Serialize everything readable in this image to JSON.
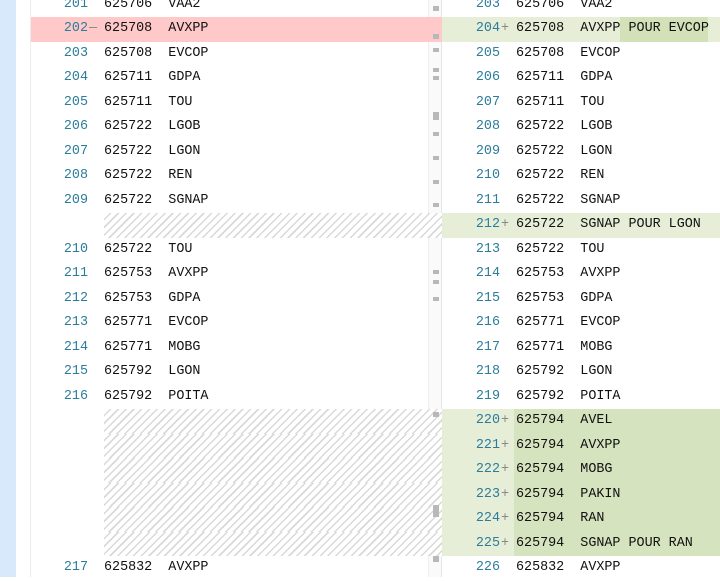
{
  "colors": {
    "deleted": "#ffc9c9",
    "added": "#e6eed8",
    "added_strong": "#d6e3bf",
    "line_number": "#2b7d9b"
  },
  "left": {
    "rows": [
      {
        "num": "201",
        "text": "625706  VAA2"
      },
      {
        "num": "202",
        "text": "625708  AVXPP",
        "type": "deleted",
        "marker": "—"
      },
      {
        "num": "203",
        "text": "625708  EVCOP"
      },
      {
        "num": "204",
        "text": "625711  GDPA"
      },
      {
        "num": "205",
        "text": "625711  TOU"
      },
      {
        "num": "206",
        "text": "625722  LGOB"
      },
      {
        "num": "207",
        "text": "625722  LGON"
      },
      {
        "num": "208",
        "text": "625722  REN"
      },
      {
        "num": "209",
        "text": "625722  SGNAP"
      },
      {
        "type": "gap"
      },
      {
        "num": "210",
        "text": "625722  TOU"
      },
      {
        "num": "211",
        "text": "625753  AVXPP"
      },
      {
        "num": "212",
        "text": "625753  GDPA"
      },
      {
        "num": "213",
        "text": "625771  EVCOP"
      },
      {
        "num": "214",
        "text": "625771  MOBG"
      },
      {
        "num": "215",
        "text": "625792  LGON"
      },
      {
        "num": "216",
        "text": "625792  POITA"
      },
      {
        "type": "gap"
      },
      {
        "type": "gap"
      },
      {
        "type": "gap"
      },
      {
        "type": "gap"
      },
      {
        "type": "gap"
      },
      {
        "type": "gap"
      },
      {
        "num": "217",
        "text": "625832  AVXPP"
      }
    ]
  },
  "right": {
    "rows": [
      {
        "num": "203",
        "text": "625706  VAA2"
      },
      {
        "num": "204",
        "text": "625708  AVXPP POUR EVCOP",
        "type": "added",
        "marker": "+"
      },
      {
        "num": "205",
        "text": "625708  EVCOP"
      },
      {
        "num": "206",
        "text": "625711  GDPA"
      },
      {
        "num": "207",
        "text": "625711  TOU"
      },
      {
        "num": "208",
        "text": "625722  LGOB"
      },
      {
        "num": "209",
        "text": "625722  LGON"
      },
      {
        "num": "210",
        "text": "625722  REN"
      },
      {
        "num": "211",
        "text": "625722  SGNAP"
      },
      {
        "num": "212",
        "text": "625722  SGNAP POUR LGON",
        "type": "added",
        "marker": "+"
      },
      {
        "num": "213",
        "text": "625722  TOU"
      },
      {
        "num": "214",
        "text": "625753  AVXPP"
      },
      {
        "num": "215",
        "text": "625753  GDPA"
      },
      {
        "num": "216",
        "text": "625771  EVCOP"
      },
      {
        "num": "217",
        "text": "625771  MOBG"
      },
      {
        "num": "218",
        "text": "625792  LGON"
      },
      {
        "num": "219",
        "text": "625792  POITA"
      },
      {
        "num": "220",
        "text": "625794  AVEL",
        "type": "added-block",
        "marker": "+"
      },
      {
        "num": "221",
        "text": "625794  AVXPP",
        "type": "added-block",
        "marker": "+"
      },
      {
        "num": "222",
        "text": "625794  MOBG",
        "type": "added-block",
        "marker": "+"
      },
      {
        "num": "223",
        "text": "625794  PAKIN",
        "type": "added-block",
        "marker": "+"
      },
      {
        "num": "224",
        "text": "625794  RAN",
        "type": "added-block",
        "marker": "+"
      },
      {
        "num": "225",
        "text": "625794  SGNAP POUR RAN",
        "type": "added-block",
        "marker": "+"
      },
      {
        "num": "226",
        "text": "625832  AVXPP"
      }
    ]
  }
}
